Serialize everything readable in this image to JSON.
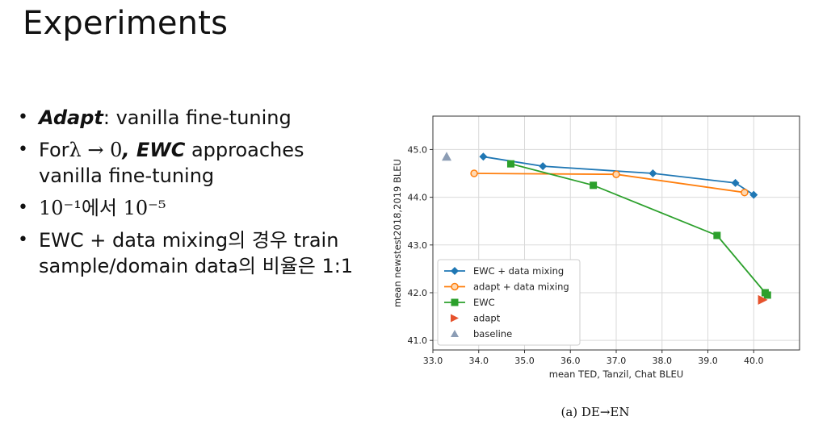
{
  "slide": {
    "title": "Experiments",
    "bullets": [
      {
        "bold": "Adapt",
        "text": ": vanilla fine-tuning"
      },
      {
        "pre": "For",
        "math": "λ → 0",
        "bold": ", EWC",
        "text": " approaches vanilla fine-tuning"
      },
      {
        "math": "10⁻¹",
        "mid": "에서 ",
        "math2": "10⁻⁵"
      },
      {
        "text": "EWC + data mixing의 경우 train sample/domain data의 비율은 1:1"
      }
    ],
    "caption": "(a) DE→EN"
  },
  "chart_data": {
    "type": "line",
    "xlabel": "mean TED, Tanzil, Chat BLEU",
    "ylabel": "mean newstest2018,2019 BLEU",
    "xlim": [
      33.0,
      41.0
    ],
    "ylim": [
      40.8,
      45.7
    ],
    "xticks": [
      "33.0",
      "34.0",
      "35.0",
      "36.0",
      "37.0",
      "38.0",
      "39.0",
      "40.0"
    ],
    "yticks": [
      "41.0",
      "42.0",
      "43.0",
      "44.0",
      "45.0"
    ],
    "grid": true,
    "legend_position": "lower-left",
    "series": [
      {
        "name": "EWC + data mixing",
        "color": "#1f77b4",
        "marker": "diamond",
        "x": [
          34.1,
          35.4,
          37.8,
          39.6,
          40.0
        ],
        "y": [
          44.85,
          44.65,
          44.5,
          44.3,
          44.05
        ]
      },
      {
        "name": "adapt + data mixing",
        "color": "#ff7f0e",
        "marker": "circle-open",
        "x": [
          33.9,
          37.0,
          39.8
        ],
        "y": [
          44.5,
          44.48,
          44.1
        ]
      },
      {
        "name": "EWC",
        "color": "#2ca02c",
        "marker": "square",
        "x": [
          34.7,
          36.5,
          39.2,
          40.25,
          40.3
        ],
        "y": [
          44.7,
          44.25,
          43.2,
          42.0,
          41.95
        ]
      },
      {
        "name": "adapt",
        "color": "#e6522c",
        "marker": "triangle-right",
        "line": false,
        "x": [
          40.2
        ],
        "y": [
          41.85
        ]
      },
      {
        "name": "baseline",
        "color": "#8c9db5",
        "marker": "triangle-up",
        "line": false,
        "x": [
          33.3
        ],
        "y": [
          44.85
        ]
      }
    ]
  }
}
